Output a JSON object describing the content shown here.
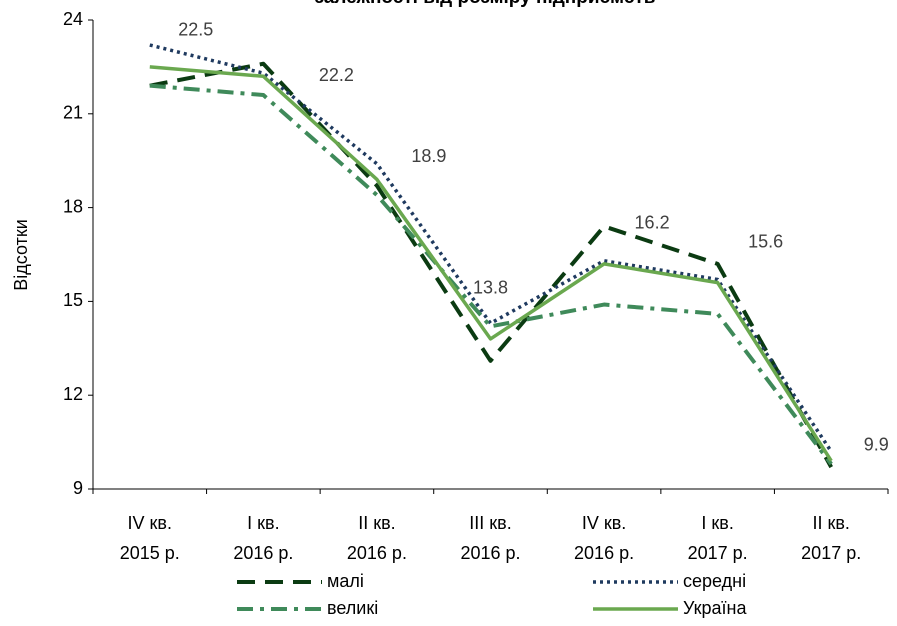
{
  "chart_data": {
    "type": "line",
    "title": "залежності від розміру підприємств",
    "y_label": "Відсотки",
    "categories": [
      "IV кв.\n2015 р.",
      "I кв.\n2016 р.",
      "II кв.\n2016 р.",
      "III кв.\n2016 р.",
      "IV кв.\n2016 р.",
      "I кв.\n2017 р.",
      "II кв.\n2017 р."
    ],
    "series": [
      {
        "name": "малі",
        "color": "#0b3b12",
        "style": "dashed",
        "values": [
          21.9,
          22.6,
          18.7,
          13.1,
          17.4,
          16.2,
          9.7
        ]
      },
      {
        "name": "середні",
        "color": "#1f3a5f",
        "style": "dotted",
        "values": [
          23.2,
          22.3,
          19.4,
          14.3,
          16.3,
          15.7,
          10.2
        ]
      },
      {
        "name": "великі",
        "color": "#3f8a5a",
        "style": "dashdot",
        "values": [
          21.9,
          21.6,
          18.4,
          14.2,
          14.9,
          14.6,
          9.8
        ]
      },
      {
        "name": "Україна",
        "color": "#6aa84f",
        "style": "solid",
        "values": [
          22.5,
          22.2,
          18.9,
          13.8,
          16.2,
          15.6,
          9.9
        ],
        "data_labels": true
      }
    ],
    "ylim": [
      9,
      24
    ],
    "yticks": [
      9,
      12,
      15,
      18,
      21,
      24
    ],
    "grid": false
  }
}
